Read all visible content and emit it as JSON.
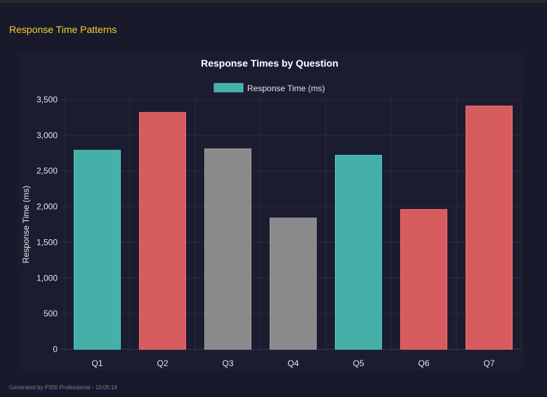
{
  "section_title": "Response Time Patterns",
  "footer": "Generated by P300 Professional - 10:05:14",
  "chart_data": {
    "type": "bar",
    "title": "Response Times by Question",
    "xlabel": "",
    "ylabel": "Response Time (ms)",
    "categories": [
      "Q1",
      "Q2",
      "Q3",
      "Q4",
      "Q5",
      "Q6",
      "Q7"
    ],
    "series": [
      {
        "name": "Response Time (ms)",
        "values": [
          2790,
          3320,
          2810,
          1840,
          2720,
          1960,
          3410
        ]
      }
    ],
    "bar_colors": [
      "#45b0a8",
      "#d65c60",
      "#8a898c",
      "#8a898c",
      "#45b0a8",
      "#d65c60",
      "#d65c60"
    ],
    "bar_border_colors": [
      "#4ecdc4",
      "#ff6b6b",
      "#a0a0a0",
      "#a0a0a0",
      "#4ecdc4",
      "#ff6b6b",
      "#ff6b6b"
    ],
    "yticks": [
      "0",
      "500",
      "1,000",
      "1,500",
      "2,000",
      "2,500",
      "3,000",
      "3,500"
    ],
    "ylim": [
      0,
      3500
    ],
    "grid": true,
    "legend_position": "top"
  }
}
